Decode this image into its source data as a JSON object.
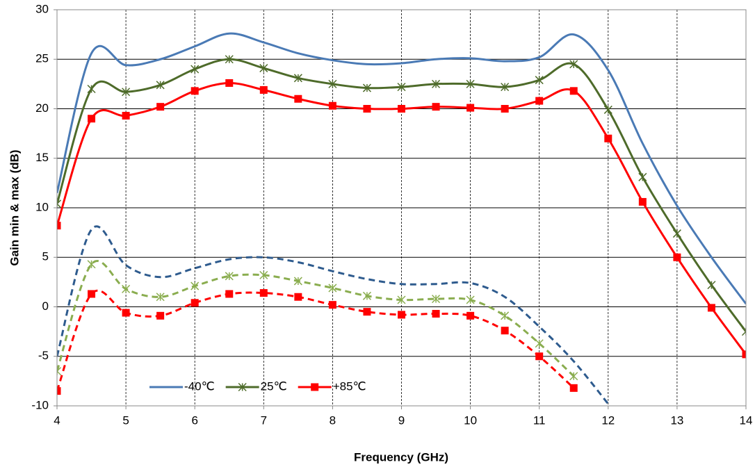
{
  "chart_data": {
    "type": "line",
    "x_label": "Frequency (GHz)",
    "y_label": "Gain min & max (dB)",
    "x": [
      4,
      4.5,
      5,
      5.5,
      6,
      6.5,
      7,
      7.5,
      8,
      8.5,
      9,
      9.5,
      10,
      10.5,
      11,
      11.5,
      12,
      12.5,
      13,
      13.5,
      14
    ],
    "xlim": [
      4,
      14
    ],
    "xticks": [
      4,
      5,
      6,
      7,
      8,
      9,
      10,
      11,
      12,
      13,
      14
    ],
    "ylim": [
      -10,
      30
    ],
    "yticks": [
      -10,
      -5,
      0,
      5,
      10,
      15,
      20,
      25,
      30
    ],
    "grid": true,
    "legend": "lower left",
    "smooth": true,
    "series": [
      {
        "name": "-40℃",
        "color": "#4a7ab5",
        "dash": false,
        "marker": "none",
        "values": [
          11.5,
          25.6,
          24.4,
          25,
          26.3,
          27.6,
          26.7,
          25.6,
          24.9,
          24.5,
          24.6,
          25,
          25.1,
          24.8,
          25.2,
          27.5,
          23.9,
          16.5,
          10.2,
          5,
          0.3
        ]
      },
      {
        "name": "25℃",
        "color": "#4e6b2a",
        "dash": false,
        "marker": "star",
        "values": [
          10.4,
          22,
          21.7,
          22.4,
          24,
          25,
          24.1,
          23.1,
          22.5,
          22.1,
          22.2,
          22.5,
          22.5,
          22.2,
          22.9,
          24.5,
          19.9,
          13.1,
          7.4,
          2.2,
          -2.5
        ]
      },
      {
        "name": "+85℃",
        "color": "#ff0000",
        "dash": false,
        "marker": "square",
        "values": [
          8.2,
          19,
          19.3,
          20.2,
          21.8,
          22.6,
          21.9,
          21,
          20.3,
          20,
          20,
          20.2,
          20.1,
          20,
          20.8,
          21.8,
          17,
          10.6,
          5,
          -0.1,
          -4.8
        ]
      },
      {
        "color": "#2e5b8e",
        "dash": true,
        "marker": "none",
        "values": [
          -5,
          7.8,
          4.2,
          3,
          3.9,
          4.8,
          5,
          4.5,
          3.6,
          2.8,
          2.3,
          2.3,
          2.4,
          1,
          -2,
          -5.5,
          -9.8,
          null,
          null,
          null,
          null
        ]
      },
      {
        "color": "#8aad4f",
        "dash": true,
        "marker": "star",
        "values": [
          -6.5,
          4.3,
          1.8,
          1,
          2.1,
          3.1,
          3.2,
          2.6,
          1.9,
          1.1,
          0.7,
          0.8,
          0.7,
          -0.9,
          -3.7,
          -7,
          null,
          null,
          null,
          null,
          null
        ]
      },
      {
        "color": "#ff0000",
        "dash": true,
        "marker": "square",
        "values": [
          -8.5,
          1.3,
          -0.6,
          -0.9,
          0.4,
          1.3,
          1.4,
          1,
          0.2,
          -0.5,
          -0.8,
          -0.7,
          -0.9,
          -2.4,
          -5,
          -8.2,
          null,
          null,
          null,
          null,
          null
        ]
      }
    ]
  }
}
